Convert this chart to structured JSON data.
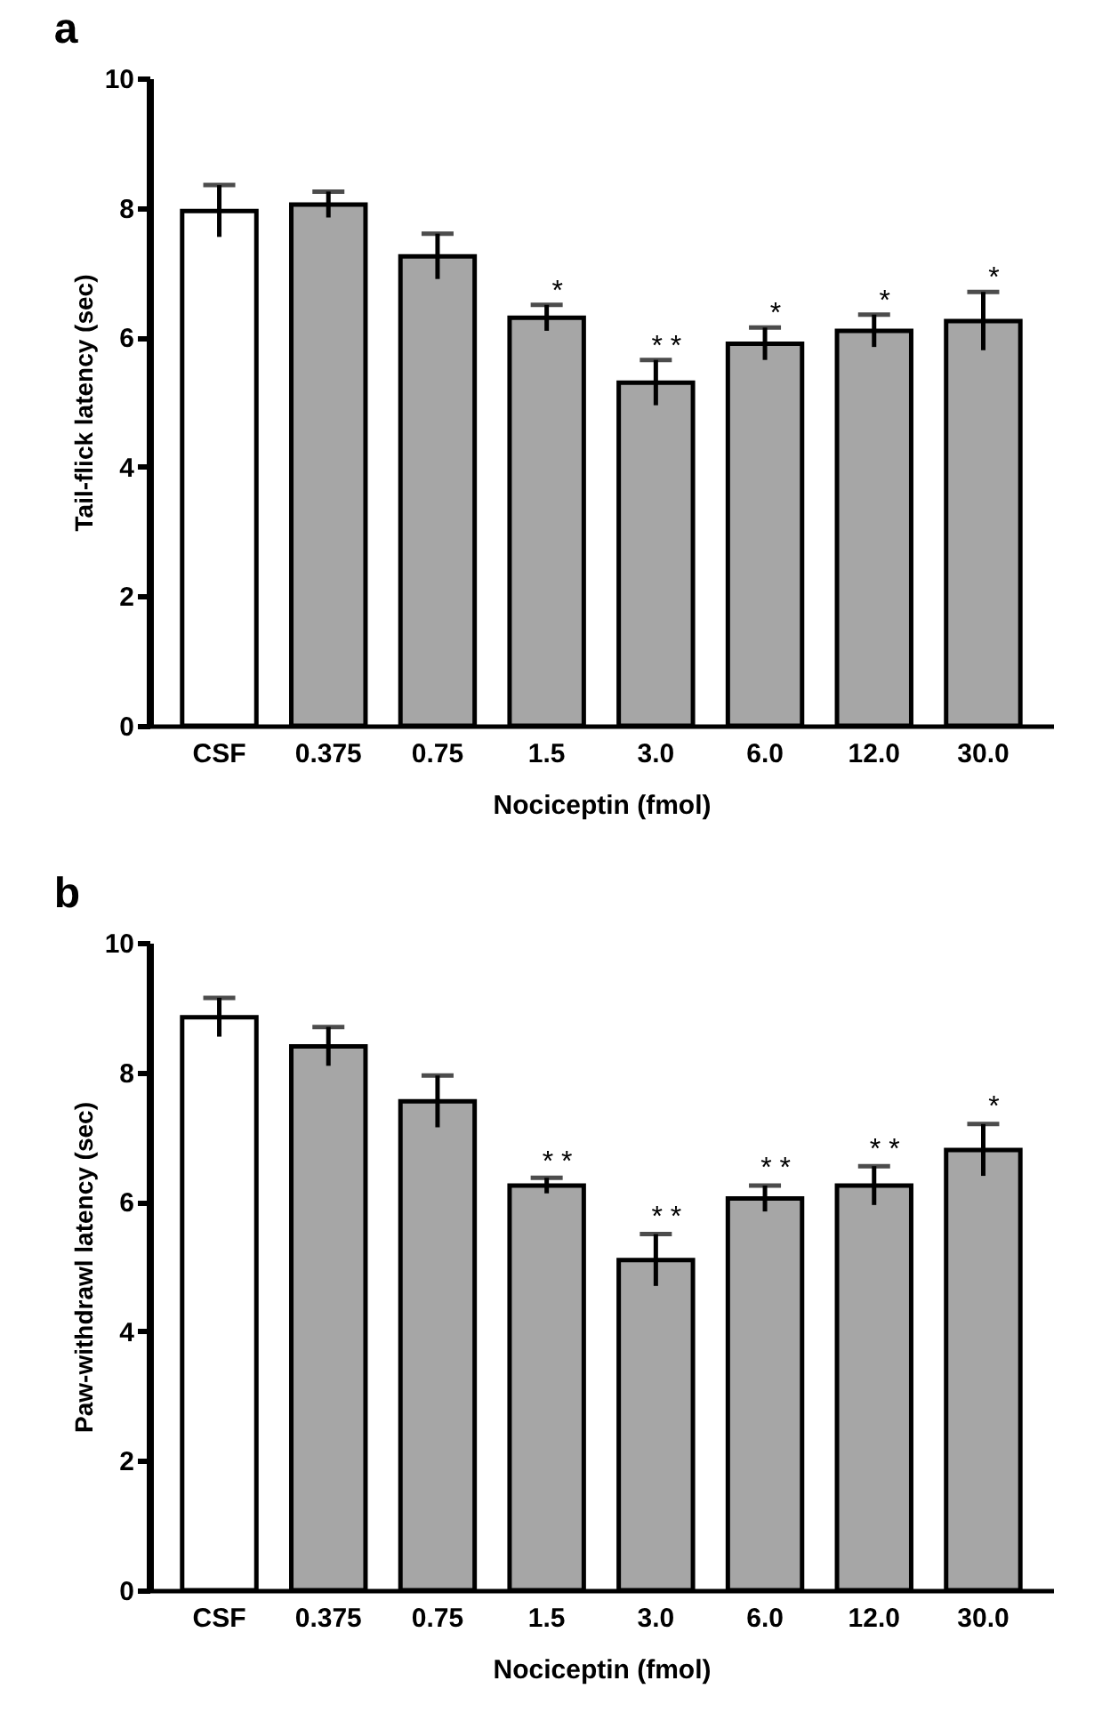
{
  "chart_data": [
    {
      "type": "bar",
      "title": "a",
      "xlabel": "Nociceptin (fmol)",
      "ylabel": "Tail-flick latency (sec)",
      "categories": [
        "CSF",
        "0.375",
        "0.75",
        "1.5",
        "3.0",
        "6.0",
        "12.0",
        "30.0"
      ],
      "values": [
        7.95,
        8.05,
        7.25,
        6.3,
        5.3,
        5.9,
        6.1,
        6.25
      ],
      "errors": [
        0.4,
        0.2,
        0.35,
        0.2,
        0.35,
        0.25,
        0.25,
        0.45
      ],
      "colors": [
        "#ffffff",
        "#a6a6a6",
        "#a6a6a6",
        "#a6a6a6",
        "#a6a6a6",
        "#a6a6a6",
        "#a6a6a6",
        "#a6a6a6"
      ],
      "ylim": [
        0,
        10
      ],
      "yticks": [
        0,
        2,
        4,
        6,
        8,
        10
      ],
      "grid": false,
      "annotations": [
        {
          "text": "*",
          "x": "1.5",
          "y": 6.5
        },
        {
          "text": "* *",
          "x": "3.0",
          "y": 5.65
        },
        {
          "text": "*",
          "x": "6.0",
          "y": 6.15
        },
        {
          "text": "*",
          "x": "12.0",
          "y": 6.35
        },
        {
          "text": "*",
          "x": "30.0",
          "y": 6.7
        }
      ]
    },
    {
      "type": "bar",
      "title": "b",
      "xlabel": "Nociceptin (fmol)",
      "ylabel": "Paw-withdrawl latency (sec)",
      "categories": [
        "CSF",
        "0.375",
        "0.75",
        "1.5",
        "3.0",
        "6.0",
        "12.0",
        "30.0"
      ],
      "values": [
        8.85,
        8.4,
        7.55,
        6.25,
        5.1,
        6.05,
        6.25,
        6.8
      ],
      "errors": [
        0.3,
        0.3,
        0.4,
        0.12,
        0.4,
        0.2,
        0.3,
        0.4
      ],
      "colors": [
        "#ffffff",
        "#a6a6a6",
        "#a6a6a6",
        "#a6a6a6",
        "#a6a6a6",
        "#a6a6a6",
        "#a6a6a6",
        "#a6a6a6"
      ],
      "ylim": [
        0,
        10
      ],
      "yticks": [
        0,
        2,
        4,
        6,
        8,
        10
      ],
      "grid": false,
      "annotations": [
        {
          "text": "* *",
          "x": "1.5",
          "y": 6.4
        },
        {
          "text": "* *",
          "x": "3.0",
          "y": 5.55
        },
        {
          "text": "* *",
          "x": "6.0",
          "y": 6.3
        },
        {
          "text": "* *",
          "x": "12.0",
          "y": 6.6
        },
        {
          "text": "*",
          "x": "30.0",
          "y": 7.25
        }
      ]
    }
  ]
}
